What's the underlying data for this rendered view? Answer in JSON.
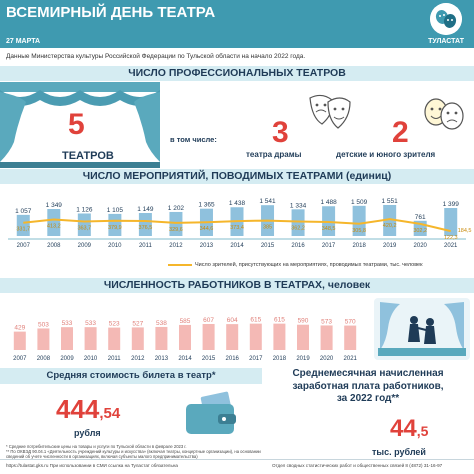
{
  "header": {
    "title": "ВСЕМИРНЫЙ ДЕНЬ ТЕАТРА",
    "date": "27 МАРТА",
    "brand": "ТУЛАСТАТ"
  },
  "source_note": "Данные Министерства культуры Российской Федерации по Тульской области на начало 2022 года.",
  "theatres": {
    "heading": "ЧИСЛО ПРОФЕССИОНАЛЬНЫХ ТЕАТРОВ",
    "total_value": "5",
    "total_caption": "ТЕАТРОВ",
    "including_label": "в том числе:",
    "drama_value": "3",
    "drama_caption": "театра драмы",
    "children_value": "2",
    "children_caption": "детские и юного зрителя"
  },
  "events": {
    "heading": "ЧИСЛО МЕРОПРИЯТИЙ, ПОВОДИМЫХ ТЕАТРАМИ (единиц)",
    "legend": "Число зрителей, присутствующих на мероприятиях, проводимых театрами, тыс. человек"
  },
  "staff": {
    "heading": "ЧИСЛЕННОСТЬ  РАБОТНИКОВ  В ТЕАТРАХ, человек"
  },
  "ticket": {
    "title": "Средняя стоимость билета в театр*",
    "value_int": "444",
    "value_dec": ",54",
    "unit": "рубля"
  },
  "salary": {
    "title_line1": "Среднемесячная начисленная",
    "title_line2": "заработная плата работников,",
    "title_line3": "за 2022 год**",
    "value_int": "44",
    "value_dec": ",5",
    "unit": "тыс. рублей"
  },
  "footnote": {
    "line1": "* Средние потребительские цены на товары и услуги по Тульской области в феврале 2023 г.",
    "line2": "** По ОКВЭД 90.04.1 «Деятельность учреждений культуры и искусства» (включая театры, концертные организации), на основании сведений об учете численности в организациях, включая субъекты малого предпринимательства)"
  },
  "footer": {
    "left": "https://tulastat.gks.ru   При использовании в СМИ ссылка на Тулaстат обязательна",
    "right": "Отдел сводных статистических работ и общественных связей  8 (4872) 31-16-97"
  },
  "colors": {
    "header": "#3f9ab0",
    "band": "#d5ecf2",
    "accent_red": "#e0423b",
    "bar_blue": "#8fc1dd",
    "bar_pink": "#f4b9b5",
    "line_yellow": "#f5b62b",
    "dark_text": "#1f3b57"
  },
  "icons": {
    "header_icon": "theatre-masks-icon",
    "curtain": "stage-curtain-icon",
    "masks": "comedy-tragedy-masks-icon",
    "stage": "theatre-stage-performance-icon",
    "ticket": "ticket-wallet-icon"
  },
  "chart_data": [
    {
      "type": "bar",
      "categories": [
        "2007",
        "2008",
        "2009",
        "2010",
        "2011",
        "2012",
        "2013",
        "2014",
        "2015",
        "2016",
        "2017",
        "2018",
        "2019",
        "2020",
        "2021"
      ],
      "series": [
        {
          "values": [
            1057,
            1349,
            1126,
            1105,
            1149,
            1202,
            1365,
            1438,
            1541,
            1334,
            1488,
            1509,
            1551,
            761,
            1399
          ]
        }
      ],
      "overlay_line": {
        "type": "line",
        "values": [
          331.7,
          413.2,
          363.7,
          379.9,
          376.5,
          329.6,
          344.6,
          373.4,
          385.0,
          362.2,
          348.5,
          305.8,
          420.2,
          302.2,
          122.3
        ],
        "last_extra_label": "184.5"
      },
      "xlabel": "",
      "ylabel": "",
      "grid": false,
      "legend_position": "bottom"
    },
    {
      "type": "bar",
      "categories": [
        "2007",
        "2008",
        "2009",
        "2010",
        "2011",
        "2012",
        "2013",
        "2014",
        "2015",
        "2016",
        "2017",
        "2018",
        "2019",
        "2020",
        "2021"
      ],
      "series": [
        {
          "values": [
            429,
            503,
            533,
            533,
            523,
            527,
            538,
            585,
            607,
            604,
            615,
            615,
            590,
            573,
            570
          ]
        }
      ],
      "xlabel": "",
      "ylabel": "",
      "grid": false
    }
  ]
}
